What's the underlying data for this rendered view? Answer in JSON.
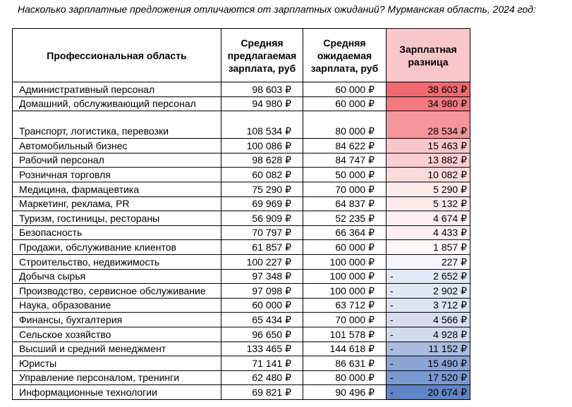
{
  "title": "Насколько зарплатные предложения отличаются от зарплатных ожиданий? Мурманская область, 2024 год:",
  "headers": [
    "Профессиональная область",
    "Средняя предлагаемая зарплата, руб",
    "Средняя ожидаемая зарплата, руб",
    "Зарплатная разница"
  ],
  "rows": [
    {
      "name": "Административный персонал",
      "offered": "98 603 ₽",
      "expected": "60 000 ₽",
      "sign": "",
      "diff": "38 603 ₽",
      "color": "#ee6a70"
    },
    {
      "name": "Домашний, обслуживающий персонал",
      "offered": "94 980 ₽",
      "expected": "60 000 ₽",
      "sign": "",
      "diff": "34 980 ₽",
      "color": "#f07a7f"
    },
    {
      "name": "Транспорт, логистика, перевозки",
      "offered": "108 534 ₽",
      "expected": "80 000 ₽",
      "sign": "",
      "diff": "28 534 ₽",
      "color": "#f4959a"
    },
    {
      "name": "Автомобильный бизнес",
      "offered": "100 086 ₽",
      "expected": "84 622 ₽",
      "sign": "",
      "diff": "15 463 ₽",
      "color": "#f9c7ca"
    },
    {
      "name": "Рабочий персонал",
      "offered": "98 628 ₽",
      "expected": "84 747 ₽",
      "sign": "",
      "diff": "13 882 ₽",
      "color": "#facdd0"
    },
    {
      "name": "Розничная торговля",
      "offered": "60 082 ₽",
      "expected": "50 000 ₽",
      "sign": "",
      "diff": "10 082 ₽",
      "color": "#fbdadc"
    },
    {
      "name": "Медицина, фармацевтика",
      "offered": "75 290 ₽",
      "expected": "70 000 ₽",
      "sign": "",
      "diff": "5 290 ₽",
      "color": "#fdeaeb"
    },
    {
      "name": "Маркетинг, реклама, PR",
      "offered": "69 969 ₽",
      "expected": "64 837 ₽",
      "sign": "",
      "diff": "5 132 ₽",
      "color": "#fdebec"
    },
    {
      "name": "Туризм, гостиницы, рестораны",
      "offered": "56 909 ₽",
      "expected": "52 235 ₽",
      "sign": "",
      "diff": "4 674 ₽",
      "color": "#fdeeef"
    },
    {
      "name": "Безопасность",
      "offered": "70 797 ₽",
      "expected": "66 364 ₽",
      "sign": "",
      "diff": "4 433 ₽",
      "color": "#fdeff0"
    },
    {
      "name": "Продажи, обслуживание клиентов",
      "offered": "61 857 ₽",
      "expected": "60 000 ₽",
      "sign": "",
      "diff": "1 857 ₽",
      "color": "#fef8f8"
    },
    {
      "name": "Строительство, недвижимость",
      "offered": "100 227 ₽",
      "expected": "100 000 ₽",
      "sign": "",
      "diff": "227 ₽",
      "color": "#f4f6fb"
    },
    {
      "name": "Добыча сырья",
      "offered": "97 348 ₽",
      "expected": "100 000 ₽",
      "sign": "-",
      "diff": "2 652 ₽",
      "color": "#e3e9f4"
    },
    {
      "name": "Производство, сервисное обслуживание",
      "offered": "97 098 ₽",
      "expected": "100 000 ₽",
      "sign": "-",
      "diff": "2 902 ₽",
      "color": "#e1e7f3"
    },
    {
      "name": "Наука, образование",
      "offered": "60 000 ₽",
      "expected": "63 712 ₽",
      "sign": "-",
      "diff": "3 712 ₽",
      "color": "#dce3f1"
    },
    {
      "name": "Финансы, бухгалтерия",
      "offered": "65 434 ₽",
      "expected": "70 000 ₽",
      "sign": "-",
      "diff": "4 566 ₽",
      "color": "#d5ddee"
    },
    {
      "name": "Сельское хозяйство",
      "offered": "96 650 ₽",
      "expected": "101 578 ₽",
      "sign": "-",
      "diff": "4 928 ₽",
      "color": "#d2dbed"
    },
    {
      "name": "Высший и средний менеджмент",
      "offered": "133 465 ₽",
      "expected": "144 618 ₽",
      "sign": "-",
      "diff": "11 152 ₽",
      "color": "#a9bbdf"
    },
    {
      "name": "Юристы",
      "offered": "71 141 ₽",
      "expected": "86 631 ₽",
      "sign": "-",
      "diff": "15 490 ₽",
      "color": "#8aa4d4"
    },
    {
      "name": "Управление персоналом, тренинги",
      "offered": "62 480 ₽",
      "expected": "80 000 ₽",
      "sign": "-",
      "diff": "17 520 ₽",
      "color": "#7b98cf"
    },
    {
      "name": "Информационные технологии",
      "offered": "69 821 ₽",
      "expected": "90 496 ₽",
      "sign": "-",
      "diff": "20 674 ₽",
      "color": "#6084c6"
    }
  ]
}
